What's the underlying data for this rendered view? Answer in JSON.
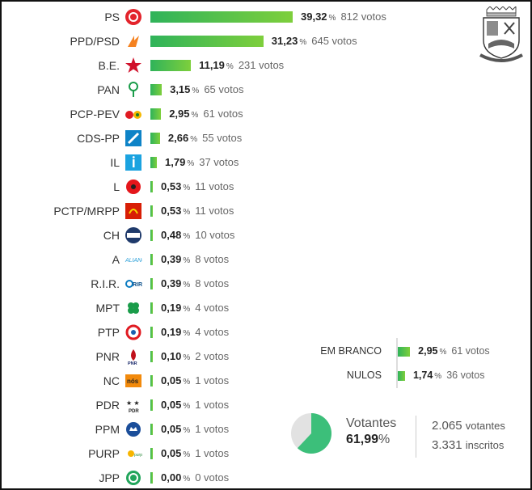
{
  "chart_data": {
    "type": "bar",
    "orientation": "horizontal",
    "categories": [
      "PS",
      "PPD/PSD",
      "B.E.",
      "PAN",
      "PCP-PEV",
      "CDS-PP",
      "IL",
      "L",
      "PCTP/MRPP",
      "CH",
      "A",
      "R.I.R.",
      "MPT",
      "PTP",
      "PNR",
      "NC",
      "PDR",
      "PPM",
      "PURP",
      "JPP"
    ],
    "series": [
      {
        "values": [
          39.32,
          31.23,
          11.19,
          3.15,
          2.95,
          2.66,
          1.79,
          0.53,
          0.53,
          0.48,
          0.39,
          0.39,
          0.19,
          0.19,
          0.1,
          0.05,
          0.05,
          0.05,
          0.05,
          0.0
        ]
      }
    ],
    "pct_labels": [
      "39,32",
      "31,23",
      "11,19",
      "3,15",
      "2,95",
      "2,66",
      "1,79",
      "0,53",
      "0,53",
      "0,48",
      "0,39",
      "0,39",
      "0,19",
      "0,19",
      "0,10",
      "0,05",
      "0,05",
      "0,05",
      "0,05",
      "0,00"
    ],
    "votes_labels": [
      "812 votos",
      "645 votos",
      "231 votos",
      "65 votos",
      "61 votos",
      "55 votos",
      "37 votos",
      "11 votos",
      "11 votos",
      "10 votos",
      "8 votos",
      "8 votos",
      "4 votos",
      "4 votos",
      "2 votos",
      "1 votos",
      "1 votos",
      "1 votos",
      "1 votos",
      "0 votos"
    ],
    "pct_sign": "%",
    "special": [
      {
        "label": "EM BRANCO",
        "value": 2.95,
        "pct_label": "2,95",
        "votes_label": "61 votos"
      },
      {
        "label": "NULOS",
        "value": 1.74,
        "pct_label": "1,74",
        "votes_label": "36 votos"
      }
    ],
    "turnout": {
      "label": "Votantes",
      "value": 61.99,
      "pct_label": "61,99",
      "voters_count": "2.065",
      "voters_unit": "votantes",
      "registered_count": "3.331",
      "registered_unit": "inscritos"
    }
  },
  "colors": {
    "bar_start": "#2fb35a",
    "bar_end": "#7ecf3c",
    "pie_fill": "#3cbf7a",
    "pie_rest": "#e2e2e2"
  },
  "logos": [
    "ps-rose-fist-icon",
    "psd-arrows-icon",
    "be-star-icon",
    "pan-tree-icon",
    "pcp-hammer-sickle-sun-icon",
    "cds-ball-icon",
    "il-blue-square-icon",
    "l-poppy-icon",
    "pctp-red-emblem-icon",
    "ch-chega-badge-icon",
    "alianca-wordmark-icon",
    "rir-logo-icon",
    "mpt-clover-icon",
    "ptp-swirl-icon",
    "pnr-flame-icon",
    "nc-nos-cidadaos-icon",
    "pdr-stars-icon",
    "ppm-crown-icon",
    "purp-sun-icon",
    "jpp-circle-icon"
  ]
}
